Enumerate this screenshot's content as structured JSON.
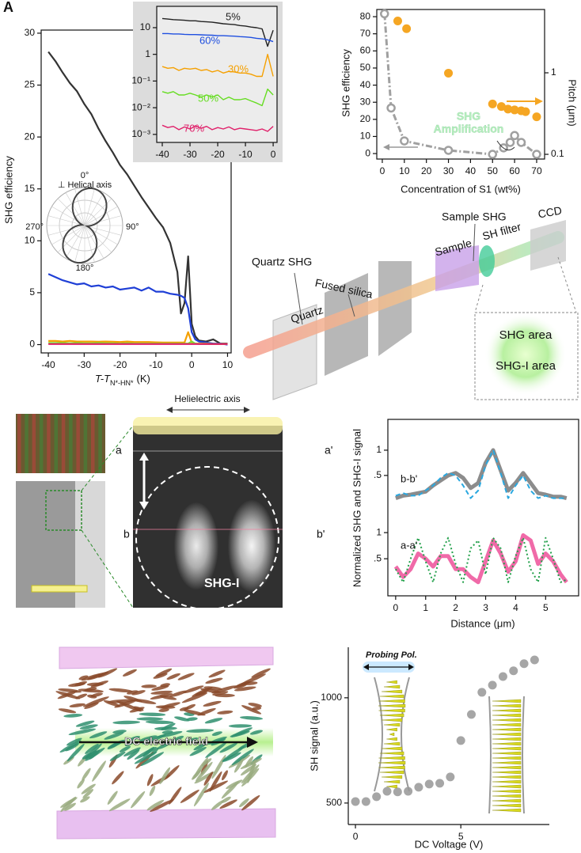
{
  "panel_label": "A",
  "chart_data": [
    {
      "type": "line",
      "x_label": "T-T",
      "x_label_sub": "N*-HN*",
      "x_label_unit": "(K)",
      "y_label": "SHG efficiency",
      "x": [
        -40,
        -38,
        -36,
        -34,
        -32,
        -30,
        -28,
        -26,
        -24,
        -22,
        -20,
        -18,
        -16,
        -14,
        -12,
        -10,
        -8,
        -6,
        -4,
        -3,
        -2,
        -1,
        0,
        1,
        2,
        4,
        6,
        8,
        10
      ],
      "series": [
        {
          "color": "#333333",
          "values": [
            28.2,
            27.3,
            26.2,
            25.2,
            24.4,
            23.2,
            22.2,
            20.8,
            19.6,
            18.5,
            17.3,
            16.4,
            15.3,
            14.2,
            13.2,
            12.2,
            11.3,
            9.8,
            7.0,
            3.0,
            4.0,
            8.5,
            2.0,
            0.8,
            0.4,
            0.3,
            0.5,
            0.1,
            0.1
          ]
        },
        {
          "color": "#1f3fd6",
          "values": [
            6.8,
            6.5,
            6.2,
            6.0,
            5.8,
            5.9,
            5.6,
            5.7,
            5.5,
            5.6,
            5.3,
            5.4,
            5.5,
            5.2,
            5.5,
            5.1,
            5.1,
            4.9,
            4.8,
            4.7,
            4.5,
            3.5,
            1.2,
            0.5,
            0.3,
            0.2,
            0.1,
            0.1,
            0.0
          ]
        },
        {
          "color": "#f5a000",
          "values": [
            0.35,
            0.35,
            0.3,
            0.35,
            0.3,
            0.3,
            0.3,
            0.28,
            0.3,
            0.28,
            0.25,
            0.3,
            0.25,
            0.25,
            0.25,
            0.22,
            0.2,
            0.2,
            0.2,
            0.2,
            0.2,
            1.2,
            0.2,
            0.1,
            0.1,
            0.1,
            0.05,
            0.05,
            0.05
          ]
        },
        {
          "color": "#77dd33",
          "values": [
            0.15,
            0.15,
            0.15,
            0.12,
            0.15,
            0.12,
            0.12,
            0.15,
            0.12,
            0.12,
            0.1,
            0.12,
            0.1,
            0.1,
            0.1,
            0.1,
            0.1,
            0.1,
            0.1,
            0.1,
            0.1,
            0.1,
            0.3,
            0.1,
            0.05,
            0.05,
            0.05,
            0.05,
            0.05
          ]
        },
        {
          "color": "#e0206a",
          "values": [
            0.05,
            0.05,
            0.05,
            0.05,
            0.05,
            0.05,
            0.05,
            0.05,
            0.05,
            0.05,
            0.05,
            0.05,
            0.05,
            0.05,
            0.05,
            0.05,
            0.05,
            0.05,
            0.05,
            0.05,
            0.05,
            0.05,
            0.05,
            0.05,
            0.05,
            0.05,
            0.05,
            0.05,
            0.05
          ]
        }
      ],
      "xlim": [
        -42,
        11
      ],
      "ylim": [
        -0.8,
        30.3
      ],
      "xticks": [
        -40,
        -30,
        -20,
        -10,
        0,
        10
      ],
      "yticks": [
        0,
        5,
        10,
        15,
        20,
        25,
        30
      ]
    },
    {
      "type": "line",
      "yscale": "log",
      "x": [
        -40,
        -38,
        -36,
        -34,
        -32,
        -30,
        -28,
        -26,
        -24,
        -22,
        -20,
        -18,
        -16,
        -14,
        -12,
        -10,
        -8,
        -6,
        -4,
        -2,
        0
      ],
      "series": [
        {
          "name": "5%",
          "color": "#222222",
          "values": [
            22,
            21,
            20,
            19.5,
            19,
            18,
            18,
            17,
            16.5,
            16,
            15,
            14,
            13.5,
            13,
            12,
            11.5,
            10.5,
            10,
            9,
            2,
            8
          ]
        },
        {
          "name": "60%",
          "color": "#1f4fe0",
          "values": [
            6,
            6,
            5.8,
            5.8,
            5.6,
            5.5,
            5.5,
            5.4,
            5.3,
            5.2,
            5,
            5,
            4.9,
            4.8,
            4.6,
            4.5,
            4.3,
            4,
            3.8,
            3.5,
            3
          ]
        },
        {
          "name": "30%",
          "color": "#f5a000",
          "values": [
            0.35,
            0.3,
            0.32,
            0.25,
            0.3,
            0.28,
            0.3,
            0.25,
            0.27,
            0.22,
            0.25,
            0.2,
            0.23,
            0.22,
            0.2,
            0.2,
            0.18,
            0.15,
            0.15,
            1,
            0.15
          ]
        },
        {
          "name": "50%",
          "color": "#66dd22",
          "values": [
            0.04,
            0.035,
            0.04,
            0.03,
            0.03,
            0.035,
            0.03,
            0.025,
            0.03,
            0.025,
            0.03,
            0.02,
            0.025,
            0.02,
            0.02,
            0.022,
            0.018,
            0.015,
            0.012,
            0.05,
            0.03
          ]
        },
        {
          "name": "70%",
          "color": "#e0206a",
          "values": [
            0.0022,
            0.0018,
            0.002,
            0.0015,
            0.0019,
            0.0016,
            0.0021,
            0.0017,
            0.002,
            0.0015,
            0.0018,
            0.0016,
            0.0019,
            0.0015,
            0.0017,
            0.0016,
            0.0015,
            0.0014,
            0.0016,
            0.0013,
            0.002
          ]
        }
      ],
      "xlim": [
        -42,
        1.4
      ],
      "ylim": [
        0.0005,
        63
      ],
      "xticks": [
        -40,
        -30,
        -20,
        -10,
        0
      ],
      "yticks": [
        10,
        1,
        {
          "value": 0.1,
          "label": "10⁻¹"
        },
        {
          "value": 0.01,
          "label": "10⁻²"
        },
        {
          "value": 0.001,
          "label": "10⁻³"
        }
      ]
    },
    {
      "type": "scatter",
      "x_label": "Concentration of S1 (wt%)",
      "y_label": "SHG efficiency",
      "y2_label": "Pitch (μm)",
      "y2scale": "log",
      "annotation": [
        "SHG",
        "Amplification"
      ],
      "series": [
        {
          "color": "#f5a623",
          "marker": "filled",
          "x": [
            7,
            11,
            30,
            50,
            54,
            57,
            60,
            63,
            65,
            70
          ],
          "values": [
            77.5,
            73,
            47,
            29,
            27.5,
            26,
            25.5,
            25,
            24.5,
            21.5
          ]
        },
        {
          "color": "#a0a0a0",
          "marker": "hollow",
          "line": "dashdot",
          "axis": "y2",
          "x": [
            1,
            4,
            10,
            30,
            50,
            55,
            58,
            60,
            63,
            70
          ],
          "values": [
            5.3,
            0.37,
            0.146,
            0.112,
            0.1,
            0.12,
            0.14,
            0.17,
            0.14,
            0.1
          ]
        }
      ],
      "xlim": [
        -2.5,
        73.6
      ],
      "ylim": [
        -3.2,
        84.2
      ],
      "y2lim": [
        0.0875,
        5.98
      ],
      "xticks": [
        0,
        10,
        20,
        30,
        40,
        50,
        60,
        70
      ],
      "yticks": [
        0,
        10,
        20,
        30,
        40,
        50,
        60,
        70,
        80
      ],
      "y2ticks": [
        0.1,
        1
      ]
    },
    {
      "type": "line",
      "x": [
        0,
        0.25,
        0.5,
        0.75,
        1,
        1.25,
        1.5,
        1.75,
        2,
        2.25,
        2.5,
        2.75,
        3,
        3.25,
        3.5,
        3.75,
        4,
        4.25,
        4.5,
        4.75,
        5,
        5.25,
        5.5,
        5.7
      ],
      "series": [
        {
          "name": "b-b'",
          "color": "#8c8c8c",
          "style": "thick",
          "values": [
            0.05,
            0.1,
            0.12,
            0.15,
            0.18,
            0.3,
            0.4,
            0.5,
            0.55,
            0.45,
            0.25,
            0.35,
            0.75,
            1.0,
            0.6,
            0.2,
            0.35,
            0.55,
            0.35,
            0.15,
            0.12,
            0.08,
            0.08,
            0.05
          ]
        },
        {
          "color": "#2aa8e0",
          "style": "dashed",
          "values": [
            0.1,
            0.15,
            0.1,
            0.1,
            0.2,
            0.3,
            0.45,
            0.55,
            0.5,
            0.3,
            0.05,
            0.2,
            0.7,
            1.0,
            0.55,
            0.05,
            0.3,
            0.5,
            0.2,
            0.05,
            0.1,
            0.05,
            0.05,
            0.05
          ]
        }
      ],
      "xlim": [
        -0.26,
        6.1
      ],
      "ylim": [
        -0.27,
        1.61
      ],
      "yticks": [
        {
          "value": 0.5,
          "label": ".5"
        },
        1
      ]
    },
    {
      "type": "line",
      "x_label": "Distance (μm)",
      "y_label": "Normalized SHG and SHG-I signal",
      "x": [
        0,
        0.25,
        0.5,
        0.75,
        1,
        1.25,
        1.5,
        1.75,
        2,
        2.25,
        2.5,
        2.75,
        3,
        3.25,
        3.5,
        3.75,
        4,
        4.25,
        4.5,
        4.75,
        5,
        5.25,
        5.5,
        5.7
      ],
      "series": [
        {
          "name": "a-a'",
          "color": "#f06aa8",
          "style": "thick",
          "values": [
            0.35,
            0.15,
            0.3,
            0.6,
            0.5,
            0.35,
            0.55,
            0.55,
            0.3,
            0.3,
            0.15,
            0.05,
            0.45,
            0.85,
            0.6,
            0.25,
            0.45,
            0.95,
            0.85,
            0.4,
            0.6,
            0.45,
            0.2,
            0.05
          ]
        },
        {
          "color": "#22a04a",
          "style": "dotted",
          "values": [
            0.3,
            0.05,
            0.5,
            0.9,
            0.45,
            0.05,
            0.6,
            0.9,
            0.4,
            0.05,
            0.7,
            0.85,
            0.2,
            0.9,
            0.7,
            0.05,
            0.55,
            0.9,
            0.3,
            0.05,
            0.9,
            0.5,
            0.05,
            0.1
          ]
        }
      ],
      "xlim": [
        -0.26,
        6.1
      ],
      "ylim": [
        -0.21,
        1.35
      ],
      "xticks": [
        0,
        1,
        2,
        3,
        4,
        5
      ],
      "yticks": [
        {
          "value": 0.5,
          "label": ".5"
        },
        1
      ]
    },
    {
      "type": "scatter",
      "x_label": "DC Voltage (V)",
      "y_label": "SH signal (a.u.)",
      "annotation": [
        "Probing Pol."
      ],
      "series": [
        {
          "color": "#a6a6a6",
          "marker": "filled",
          "x": [
            0,
            0.5,
            1,
            1.5,
            2,
            2.5,
            3,
            3.5,
            4,
            4.5,
            5,
            5.5,
            6,
            6.5,
            7,
            7.5,
            8,
            8.5
          ],
          "values": [
            507,
            507,
            530,
            556,
            553,
            556,
            575,
            590,
            594,
            624,
            797,
            921,
            1026,
            1060,
            1101,
            1128,
            1162,
            1180
          ]
        }
      ],
      "xlim": [
        -0.34,
        9.2
      ],
      "ylim": [
        398,
        1240
      ],
      "xticks": [
        0,
        5
      ],
      "yticks": [
        500,
        1000
      ]
    }
  ],
  "polar_inset": {
    "title": "⊥ Helical axis",
    "angles": [
      "0°",
      "90°",
      "180°",
      "270°"
    ]
  },
  "setup": {
    "quartz_shg": "Quartz SHG",
    "fused_silica": "Fused silica",
    "quartz": "Quartz",
    "sample": "Sample",
    "sample_shg": "Sample SHG",
    "sh_filter": "SH filter",
    "ccd": "CCD",
    "shg_area": "SHG area",
    "shgi_area": "SHG-I area"
  },
  "imaging": {
    "axis": "Helielectric axis",
    "a": "a",
    "a2": "a'",
    "b": "b",
    "b2": "b'",
    "shg": "SHG",
    "shgi": "SHG-I"
  },
  "field": {
    "label": "DC electric field"
  }
}
